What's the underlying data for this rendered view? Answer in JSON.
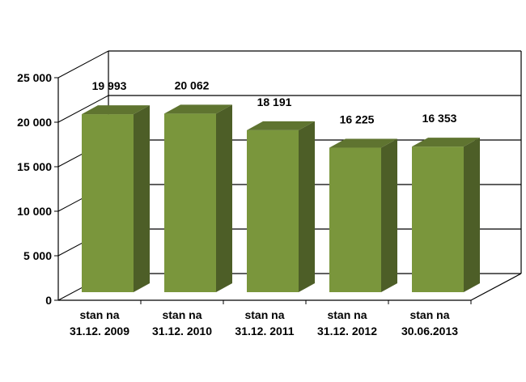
{
  "chart_data": {
    "type": "bar",
    "categories": [
      [
        "stan na",
        "31.12. 2009"
      ],
      [
        "stan na",
        "31.12. 2010"
      ],
      [
        "stan na",
        "31.12. 2011"
      ],
      [
        "stan na",
        "31.12. 2012"
      ],
      [
        "stan na",
        "30.06.2013"
      ]
    ],
    "values": [
      19993,
      20062,
      18191,
      16225,
      16353
    ],
    "value_labels": [
      "19 993",
      "20 062",
      "18 191",
      "16 225",
      "16 353"
    ],
    "y_ticks": [
      {
        "value": 0,
        "label": "0"
      },
      {
        "value": 5000,
        "label": "5 000"
      },
      {
        "value": 10000,
        "label": "10 000"
      },
      {
        "value": 15000,
        "label": "15 000"
      },
      {
        "value": 20000,
        "label": "20 000"
      },
      {
        "value": 25000,
        "label": "25 000"
      }
    ],
    "ylim": [
      0,
      25000
    ],
    "grid": true,
    "style": "3d-column",
    "colors": {
      "front": "#7a963c",
      "side": "#4d5e27",
      "top": "#5f7430",
      "grid": "#000000"
    }
  }
}
